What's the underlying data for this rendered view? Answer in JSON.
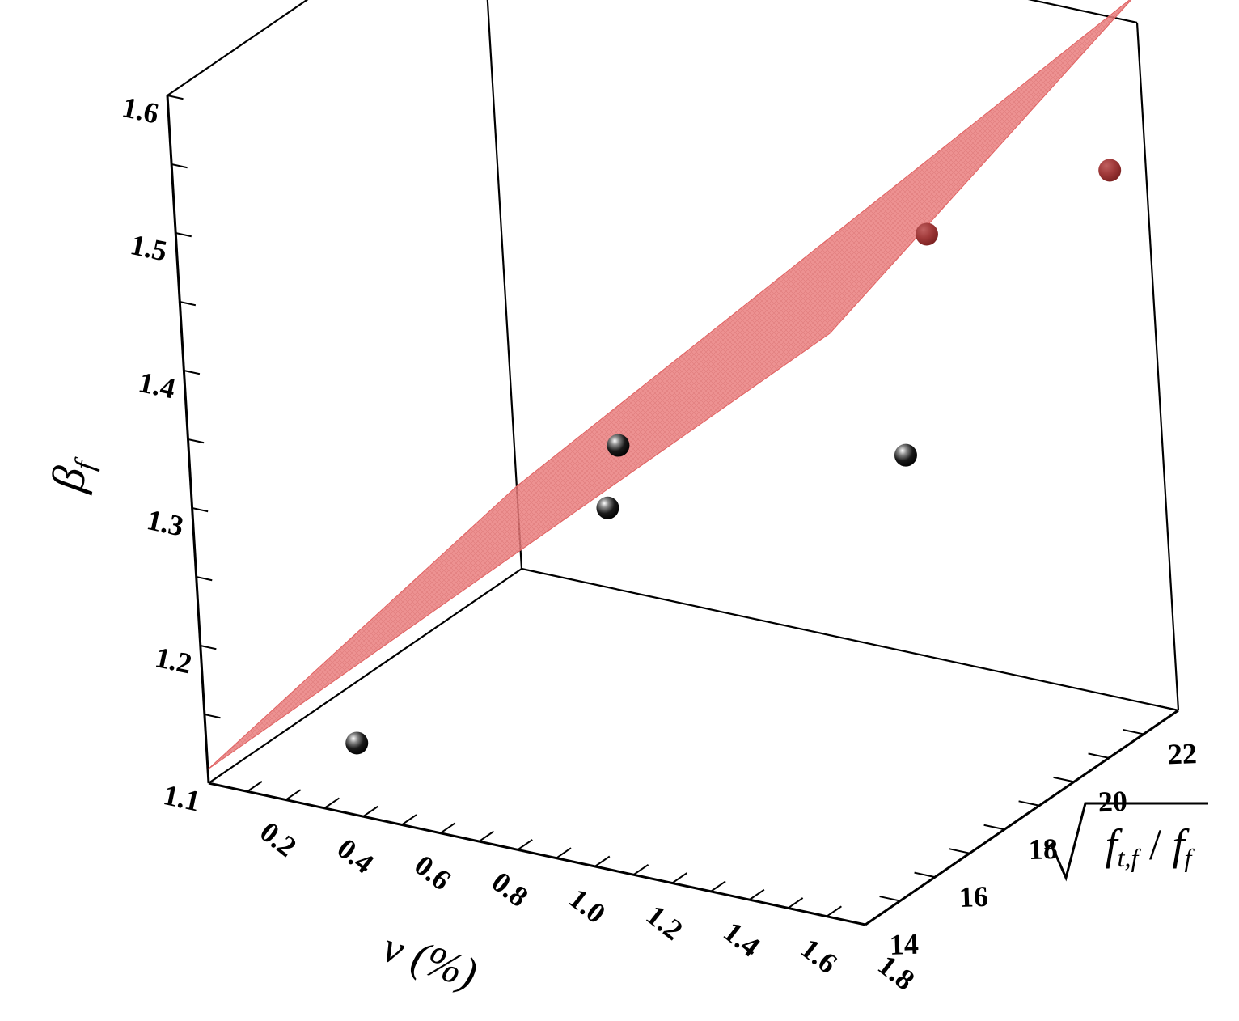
{
  "chart_data": {
    "type": "scatter",
    "projection": "3d",
    "axes": {
      "x": {
        "label": "ν (%)",
        "range": [
          0.1,
          1.8
        ],
        "ticks": [
          "0.2",
          "0.4",
          "0.6",
          "0.8",
          "1.0",
          "1.2",
          "1.4",
          "1.6",
          "1.8"
        ]
      },
      "y": {
        "label": "√(f_t,f / f_f)",
        "range": [
          14,
          23
        ],
        "ticks": [
          "14",
          "16",
          "18",
          "20",
          "22"
        ]
      },
      "z": {
        "label": "β_f",
        "range": [
          1.1,
          1.6
        ],
        "ticks": [
          "1.1",
          "1.2",
          "1.3",
          "1.4",
          "1.5",
          "1.6"
        ]
      }
    },
    "series": [
      {
        "kind": "points",
        "color": "#000000",
        "points": [
          {
            "x": 0.4,
            "y": 15.0,
            "z": 1.13
          },
          {
            "x": 0.8,
            "y": 18.5,
            "z": 1.31
          },
          {
            "x": 1.0,
            "y": 16.0,
            "z": 1.32
          },
          {
            "x": 1.6,
            "y": 18.0,
            "z": 1.36
          },
          {
            "x": 1.5,
            "y": 20.0,
            "z": 1.48
          },
          {
            "x": 1.8,
            "y": 22.0,
            "z": 1.51
          }
        ]
      },
      {
        "kind": "fitted-surface",
        "color": "#e87878",
        "corners": [
          {
            "x": 0.1,
            "y": 14,
            "z": 1.11
          },
          {
            "x": 0.1,
            "y": 23,
            "z": 1.16
          },
          {
            "x": 1.8,
            "y": 14,
            "z": 1.53
          },
          {
            "x": 1.8,
            "y": 23,
            "z": 1.62
          }
        ]
      }
    ],
    "grid": false,
    "legend": "none"
  }
}
